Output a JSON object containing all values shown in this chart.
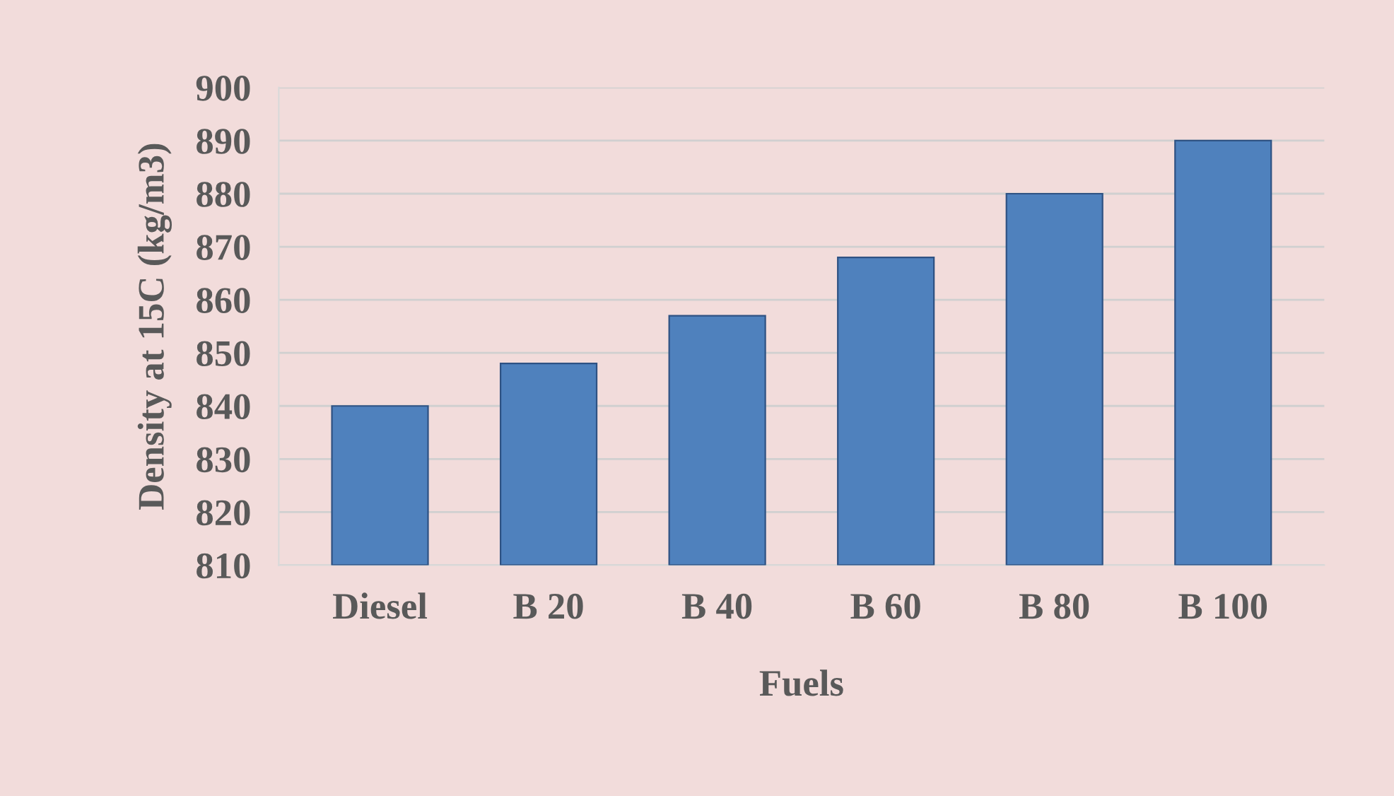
{
  "chart_data": {
    "type": "bar",
    "xlabel": "Fuels",
    "ylabel": "Density at 15C (kg/m3)",
    "categories": [
      "Diesel",
      "B 20",
      "B 40",
      "B 60",
      "B 80",
      "B 100"
    ],
    "values": [
      840,
      848,
      857,
      868,
      880,
      890
    ],
    "color": "#4f81bd",
    "ylim": [
      810,
      900
    ],
    "yticks": [
      810,
      820,
      830,
      840,
      850,
      860,
      870,
      880,
      890,
      900
    ],
    "grid": "y"
  }
}
